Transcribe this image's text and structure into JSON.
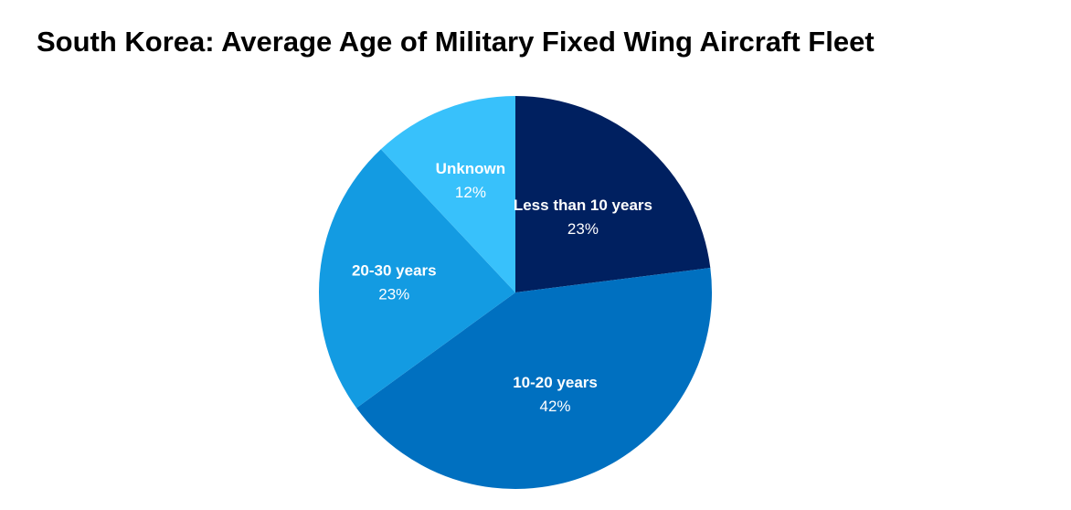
{
  "chart_data": {
    "type": "pie",
    "title": "South Korea: Average Age of Military Fixed Wing Aircraft Fleet",
    "slices": [
      {
        "label": "Less than 10 years",
        "value": 23,
        "value_label": "23%",
        "color": "#002060"
      },
      {
        "label": "10-20 years",
        "value": 42,
        "value_label": "42%",
        "color": "#0070C0"
      },
      {
        "label": "20-30 years",
        "value": 23,
        "value_label": "23%",
        "color": "#139BE2"
      },
      {
        "label": "Unknown",
        "value": 12,
        "value_label": "12%",
        "color": "#38C1FB"
      }
    ],
    "start_angle_deg": 0,
    "direction": "clockwise",
    "legend": "none",
    "data_labels": "inside"
  }
}
